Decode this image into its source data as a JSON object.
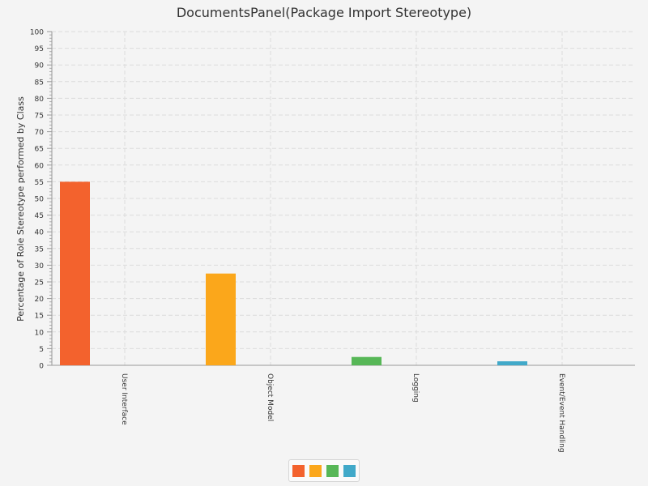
{
  "chart_data": {
    "type": "bar",
    "title": "DocumentsPanel(Package Import Stereotype)",
    "xlabel": "",
    "ylabel": "Percentage of Role Stereotype performed by Class",
    "categories": [
      "User Interface",
      "Object Model",
      "Logging",
      "Event/Event Handling"
    ],
    "values": [
      55,
      27.5,
      2.5,
      1.2
    ],
    "colors": [
      "#f3622d",
      "#fba71b",
      "#57b757",
      "#41a9c9"
    ],
    "ylim": [
      0,
      100
    ],
    "ytick_step": 5,
    "grid": true,
    "legend": {
      "placement": "bottom",
      "labels": []
    }
  }
}
